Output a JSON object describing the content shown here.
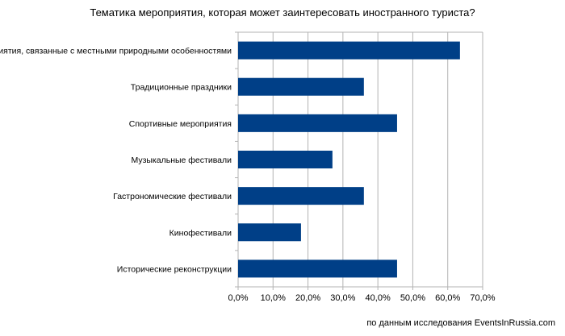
{
  "chart_data": {
    "type": "bar",
    "orientation": "horizontal",
    "title": "Тематика мероприятия, которая может заинтересовать иностранного туриста?",
    "categories": [
      "Мероприятия, связанные с местными природными особенностями",
      "Традиционные праздники",
      "Спортивные мероприятия",
      "Музыкальные фестивали",
      "Гастрономические фестивали",
      "Кинофестивали",
      "Исторические реконструкции"
    ],
    "values": [
      63.5,
      36.0,
      45.5,
      27.0,
      36.0,
      18.0,
      45.5
    ],
    "xlim": [
      0,
      70
    ],
    "xticks": [
      "0,0%",
      "10,0%",
      "20,0%",
      "30,0%",
      "40,0%",
      "50,0%",
      "60,0%",
      "70,0%"
    ],
    "grid": true,
    "bar_color": "#003f87"
  },
  "source_note": "по данным исследования EventsInRussia.com"
}
